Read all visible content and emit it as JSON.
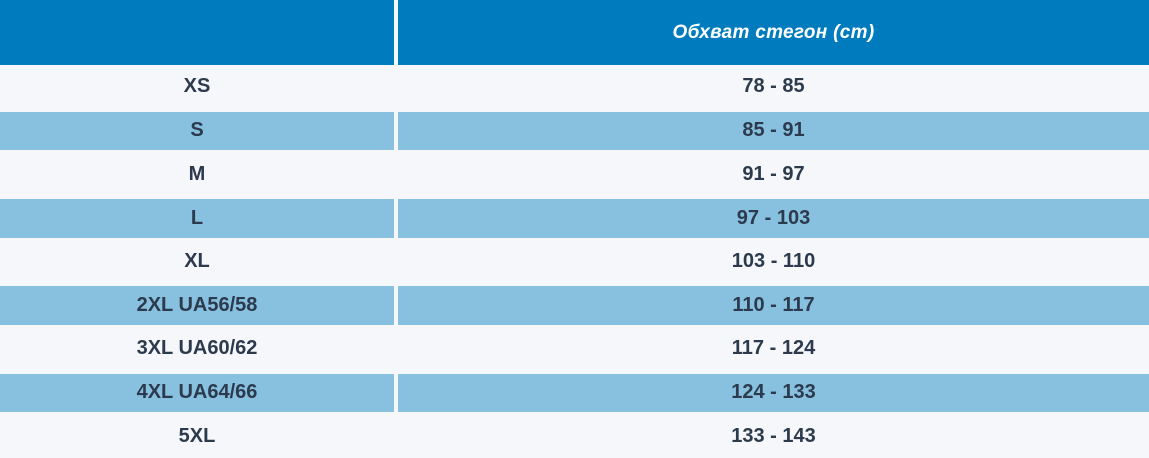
{
  "header": {
    "size_label": "",
    "measure_label": "Обхват стегон (cm)"
  },
  "colors": {
    "header_bg": "#007bbd",
    "alt_row_bg": "#88c1df",
    "row_bg": "#f5f7fa",
    "text": "#2c3a4d"
  },
  "rows": [
    {
      "size": "XS",
      "range": "78 - 85"
    },
    {
      "size": "S",
      "range": "85 - 91"
    },
    {
      "size": "M",
      "range": "91 - 97"
    },
    {
      "size": "L",
      "range": "97 - 103"
    },
    {
      "size": "XL",
      "range": "103 - 110"
    },
    {
      "size": "2XL UA56/58",
      "range": "110 - 117"
    },
    {
      "size": "3XL UA60/62",
      "range": "117 - 124"
    },
    {
      "size": "4XL UA64/66",
      "range": "124 - 133"
    },
    {
      "size": "5XL",
      "range": "133 - 143"
    }
  ]
}
